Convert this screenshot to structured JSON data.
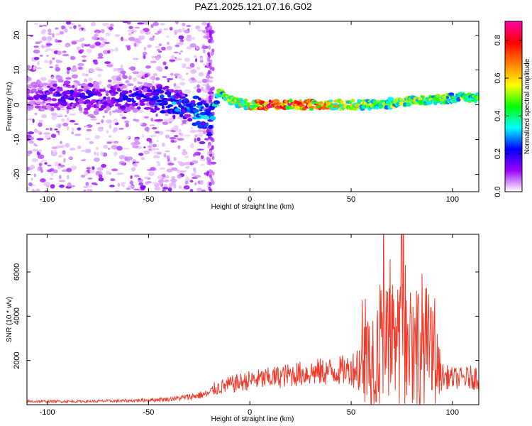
{
  "figure": {
    "title": "PAZ1.2025.121.07.16.G02"
  },
  "chart_data": [
    {
      "type": "heatmap",
      "xlabel": "Height of straight line (km)",
      "ylabel": "Frequency (Hz)",
      "xlim": [
        -110,
        113
      ],
      "ylim": [
        -25,
        24
      ],
      "xticks": [
        -100,
        -50,
        0,
        50,
        100
      ],
      "yticks": [
        -20,
        -10,
        0,
        10,
        20
      ],
      "colorbar": {
        "label": "Normalized spectral amplitude",
        "range": [
          0.0,
          0.9
        ],
        "ticks": [
          0.0,
          0.2,
          0.4,
          0.6,
          0.8
        ],
        "colors": [
          "#ffffff",
          "#9a00ff",
          "#0000ff",
          "#00ffff",
          "#00ff00",
          "#ffff00",
          "#ff8000",
          "#ff0000",
          "#ff00aa"
        ]
      },
      "ridge": {
        "description_x": [
          -110,
          -90,
          -70,
          -50,
          -40,
          -30,
          -22,
          -20,
          -15,
          -10,
          0,
          10,
          20,
          40,
          60,
          80,
          100,
          113
        ],
        "frequency": [
          2,
          3,
          2,
          2,
          1,
          -1,
          -3,
          -5,
          4,
          1,
          0,
          0,
          0,
          0,
          0,
          1,
          2,
          2
        ],
        "amplitude": [
          0.15,
          0.2,
          0.2,
          0.25,
          0.3,
          0.3,
          0.35,
          0.3,
          0.45,
          0.55,
          0.65,
          0.85,
          0.8,
          0.65,
          0.5,
          0.55,
          0.5,
          0.45
        ]
      }
    },
    {
      "type": "line",
      "xlabel": "Height of straight line (km)",
      "ylabel": "SNR (10 * v/v)",
      "xlim": [
        -110,
        113
      ],
      "ylim": [
        0,
        7700
      ],
      "xticks": [
        -100,
        -50,
        0,
        50,
        100
      ],
      "yticks": [
        2000,
        4000,
        6000
      ],
      "color": "#f23a2a",
      "envelope": {
        "x": [
          -110,
          -80,
          -60,
          -40,
          -30,
          -20,
          -18,
          -10,
          0,
          10,
          20,
          30,
          40,
          50,
          55,
          60,
          65,
          70,
          75,
          80,
          85,
          90,
          95,
          100,
          105,
          113
        ],
        "base": [
          150,
          150,
          180,
          250,
          350,
          500,
          700,
          900,
          1100,
          1200,
          1350,
          1450,
          1500,
          1600,
          1800,
          2200,
          2500,
          2500,
          2600,
          2800,
          2600,
          2200,
          1300,
          1200,
          1200,
          1250
        ],
        "spread": [
          60,
          60,
          70,
          100,
          150,
          200,
          300,
          400,
          450,
          500,
          550,
          600,
          650,
          700,
          1500,
          2500,
          2800,
          2800,
          3000,
          3200,
          3500,
          2500,
          600,
          500,
          500,
          600
        ]
      }
    }
  ]
}
